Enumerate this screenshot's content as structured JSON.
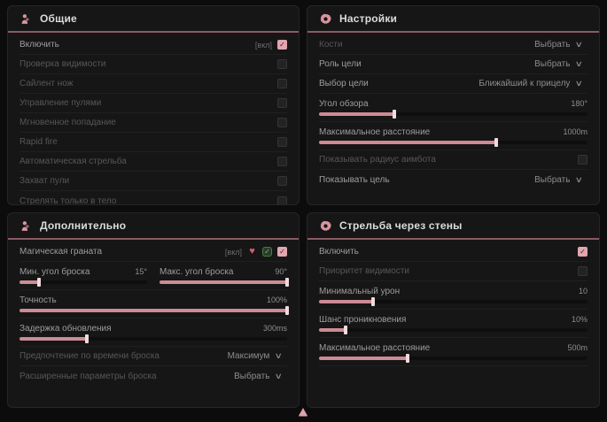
{
  "colors": {
    "accent": "#dda2ac",
    "green": "#74c66d",
    "red": "#cf5f72",
    "panel_bg": "#161616",
    "header_line": "#8a5a63"
  },
  "cursor_icon": "cursor-icon",
  "panels": [
    {
      "title": "Общие",
      "icon": "aim-person-icon",
      "rows": [
        {
          "type": "checkbox",
          "label": "Включить",
          "tag": "[вкл]",
          "checked": true,
          "dim": false
        },
        {
          "type": "checkbox",
          "label": "Проверка видимости",
          "checked": false,
          "dim": true
        },
        {
          "type": "checkbox",
          "label": "Сайлент нож",
          "checked": false,
          "dim": true
        },
        {
          "type": "checkbox",
          "label": "Управление пулями",
          "checked": false,
          "dim": true
        },
        {
          "type": "checkbox",
          "label": "Мгновенное попадание",
          "checked": false,
          "dim": true
        },
        {
          "type": "checkbox",
          "label": "Rapid fire",
          "checked": false,
          "dim": true
        },
        {
          "type": "checkbox",
          "label": "Автоматическая стрельба",
          "checked": false,
          "dim": true
        },
        {
          "type": "checkbox",
          "label": "Захват пули",
          "checked": false,
          "dim": true
        },
        {
          "type": "checkbox",
          "label": "Стрелять только в тело",
          "checked": false,
          "dim": true
        }
      ]
    },
    {
      "title": "Настройки",
      "icon": "gear-icon",
      "rows": [
        {
          "type": "select",
          "label": "Кости",
          "value": "Выбрать",
          "dim": true
        },
        {
          "type": "select",
          "label": "Роль цели",
          "value": "Выбрать",
          "dim": false
        },
        {
          "type": "select",
          "label": "Выбор цели",
          "value": "Ближайший к прицелу",
          "dim": false
        },
        {
          "type": "slider",
          "label": "Угол обзора",
          "value": "180°",
          "fill": 28
        },
        {
          "type": "slider",
          "label": "Максимальное расстояние",
          "value": "1000m",
          "fill": 66
        },
        {
          "type": "checkbox",
          "label": "Показывать радиус аимбота",
          "checked": false,
          "dim": true
        },
        {
          "type": "select",
          "label": "Показывать цель",
          "value": "Выбрать",
          "dim": false
        }
      ]
    },
    {
      "title": "Дополнительно",
      "icon": "aim-person-icon",
      "rows": [
        {
          "type": "toggles",
          "label": "Магическая граната",
          "tag": "[вкл]",
          "icons": [
            "heart-icon",
            "check-circle-icon"
          ],
          "checked": true,
          "dim": false
        },
        {
          "type": "slider2",
          "items": [
            {
              "label": "Мин. угол броска",
              "value": "15°",
              "fill": 15
            },
            {
              "label": "Макс. угол броска",
              "value": "90°",
              "fill": 100
            }
          ]
        },
        {
          "type": "slider",
          "label": "Точность",
          "value": "100%",
          "fill": 100
        },
        {
          "type": "slider",
          "label": "Задержка обновления",
          "value": "300ms",
          "fill": 25
        },
        {
          "type": "select",
          "label": "Предпочтение по времени броска",
          "value": "Максимум",
          "dim": true
        },
        {
          "type": "select",
          "label": "Расширенные параметры броска",
          "value": "Выбрать",
          "dim": true
        }
      ]
    },
    {
      "title": "Стрельба через стены",
      "icon": "gear-icon",
      "rows": [
        {
          "type": "checkbox",
          "label": "Включить",
          "checked": true,
          "dim": false
        },
        {
          "type": "checkbox",
          "label": "Приоритет видимости",
          "checked": false,
          "dim": true
        },
        {
          "type": "slider",
          "label": "Минимальный урон",
          "value": "10",
          "fill": 20
        },
        {
          "type": "slider",
          "label": "Шанс проникновения",
          "value": "10%",
          "fill": 10
        },
        {
          "type": "slider",
          "label": "Максимальное расстояние",
          "value": "500m",
          "fill": 33
        }
      ]
    }
  ]
}
